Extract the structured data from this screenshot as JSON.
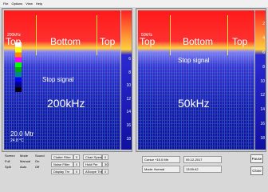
{
  "menu": [
    "File",
    "Options",
    "View",
    "Help"
  ],
  "left": {
    "top_left": "Top",
    "bottom": "Bottom",
    "top_right": "Top",
    "freq_tag": "200kHz",
    "stop": "Stop signal",
    "freq": "200kHz",
    "depth": "20.0 Mtr",
    "temp": "24.8 °C",
    "scale": [
      "6",
      "8",
      "10",
      "12",
      "14",
      "16",
      "18"
    ]
  },
  "right": {
    "top_left": "Top",
    "bottom": "Bottom",
    "top_right": "Top",
    "freq_tag": "50kHz",
    "stop": "Stop signal",
    "freq": "50kHz",
    "scale": [
      "2",
      "4",
      "6",
      "8",
      "10",
      "12",
      "14",
      "16",
      "18"
    ]
  },
  "controls": {
    "screen": {
      "title": "Screen",
      "options": [
        "Full",
        "Split"
      ]
    },
    "mode": {
      "title": "Mode",
      "options": [
        "Manual",
        "Auto"
      ]
    },
    "sound": {
      "title": "Sound",
      "options": [
        "On",
        "Off"
      ]
    },
    "filters": [
      [
        "Clutter Filter",
        "0"
      ],
      [
        "Noise Filter",
        "0"
      ],
      [
        "Display Thr",
        "0"
      ]
    ],
    "speeds": [
      [
        "Chart Speed",
        "0"
      ],
      [
        "Hold Per",
        "30"
      ],
      [
        "AScope Thr",
        "0"
      ]
    ],
    "cursor": "Cursor +15.0 Mtr",
    "date": "09-12-2017",
    "mode_status": "Mode: Normal",
    "time": "13:59:42",
    "pause": "Pause",
    "close": "Close"
  }
}
